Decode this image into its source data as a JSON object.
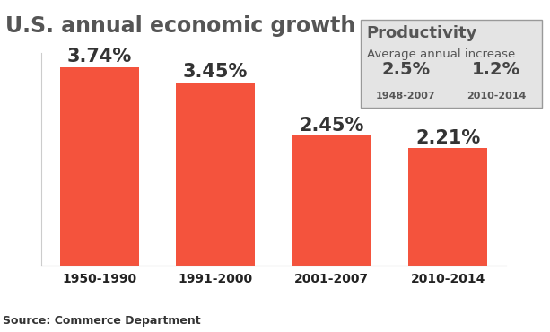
{
  "chart_data": {
    "type": "bar",
    "title": "U.S. annual economic growth",
    "categories": [
      "1950-1990",
      "1991-2000",
      "2001-2007",
      "2010-2014"
    ],
    "values": [
      3.74,
      3.45,
      2.45,
      2.21
    ],
    "value_labels": [
      "3.74%",
      "3.45%",
      "2.45%",
      "2.21%"
    ],
    "color": "#f4533d",
    "ylim": [
      0,
      4
    ],
    "grid": false,
    "data_labels": true,
    "tick_labels": "x",
    "inset": {
      "title": "Productivity",
      "subtitle": "Average annual increase",
      "items": [
        {
          "label": "2.5%",
          "period": "1948-2007"
        },
        {
          "label": "1.2%",
          "period": "2010-2014"
        }
      ]
    },
    "source": "Source: Commerce Department"
  }
}
